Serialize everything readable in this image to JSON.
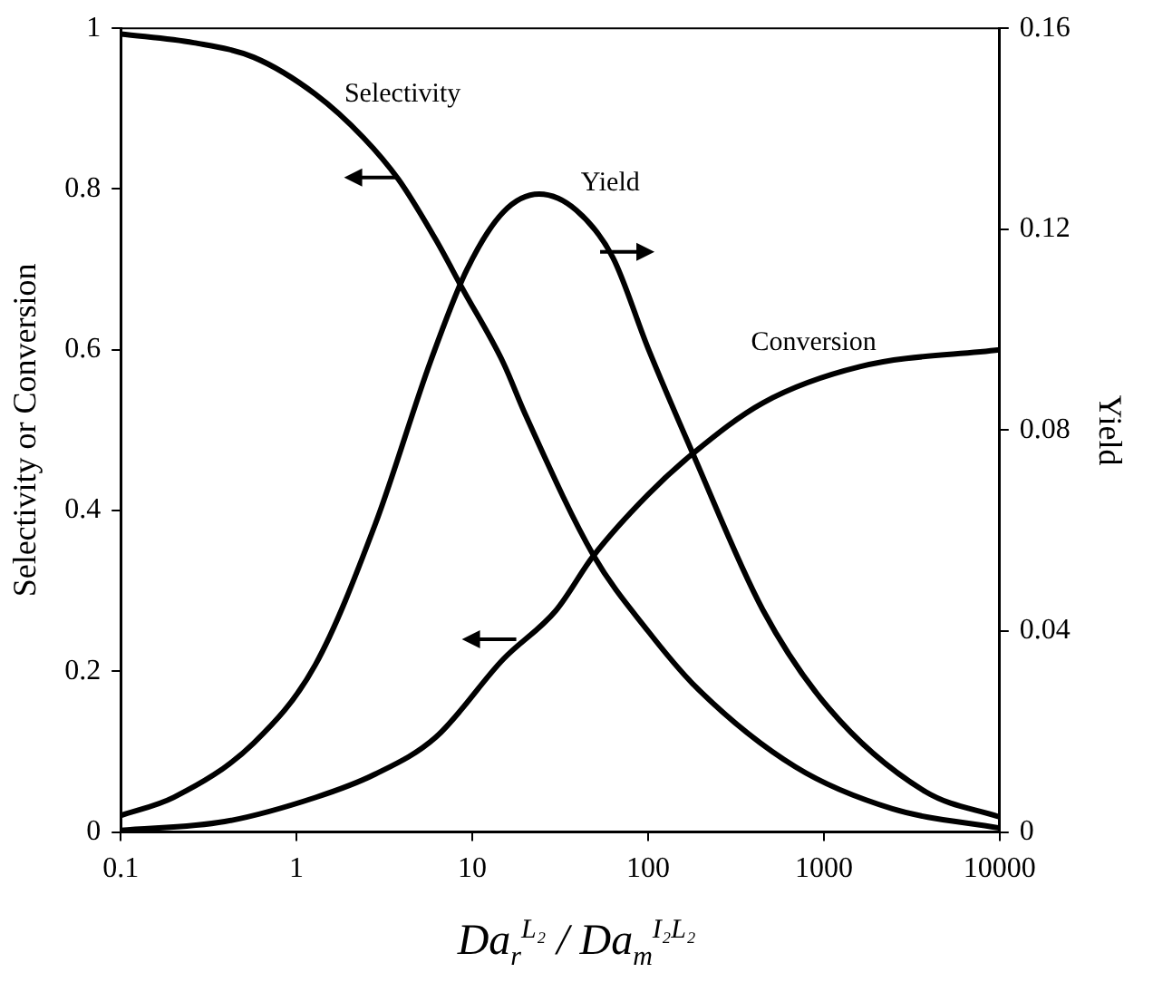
{
  "chart_data": {
    "type": "line",
    "xlabel": "Da$_{r}$$^{L₂}$ / Da$_{m}$$^{I₂L₂}$",
    "ylabel": "Selectivity or Conversion",
    "y2label": "Yield",
    "log": "x",
    "xlim": [
      0.1,
      10000
    ],
    "xticks": [
      0.1,
      1,
      10,
      100,
      1000,
      10000
    ],
    "ylim": [
      0,
      1
    ],
    "yticks": [
      0,
      0.2,
      0.4,
      0.6,
      0.8,
      1
    ],
    "y2lim": [
      0,
      0.16
    ],
    "y2ticks": [
      0,
      0.04,
      0.08,
      0.12,
      0.16
    ],
    "grid": false,
    "legend": false,
    "marker": "none",
    "line_style": "solid",
    "series": [
      {
        "name": "Selectivity",
        "color": "#000000",
        "x": [
          0.1,
          0.26,
          0.57,
          1.28,
          2.4,
          3.8,
          6.2,
          8.8,
          15,
          20,
          49,
          100,
          190,
          690,
          2450,
          10000
        ],
        "values": [
          0.993,
          0.982,
          0.964,
          0.918,
          0.864,
          0.812,
          0.737,
          0.676,
          0.584,
          0.52,
          0.344,
          0.25,
          0.179,
          0.081,
          0.029,
          0.005
        ]
      },
      {
        "name": "Conversion",
        "color": "#000000",
        "x": [
          0.1,
          0.39,
          1.28,
          2.8,
          6.2,
          15,
          30,
          49,
          100,
          180,
          450,
          1600,
          10000
        ],
        "values": [
          0.002,
          0.013,
          0.043,
          0.072,
          0.118,
          0.215,
          0.276,
          0.344,
          0.42,
          0.471,
          0.534,
          0.579,
          0.6
        ]
      },
      {
        "name": "Yield",
        "color": "#000000",
        "axis": "y2",
        "x": [
          0.1,
          0.2,
          0.57,
          1.28,
          2.8,
          5.8,
          9.3,
          15,
          24,
          39,
          63,
          100,
          180,
          450,
          1070,
          3800,
          10000
        ],
        "values": [
          0.0033,
          0.0069,
          0.0177,
          0.0333,
          0.0612,
          0.0938,
          0.1119,
          0.1234,
          0.127,
          0.1238,
          0.1144,
          0.0963,
          0.0753,
          0.0442,
          0.0246,
          0.008,
          0.003
        ]
      }
    ]
  }
}
